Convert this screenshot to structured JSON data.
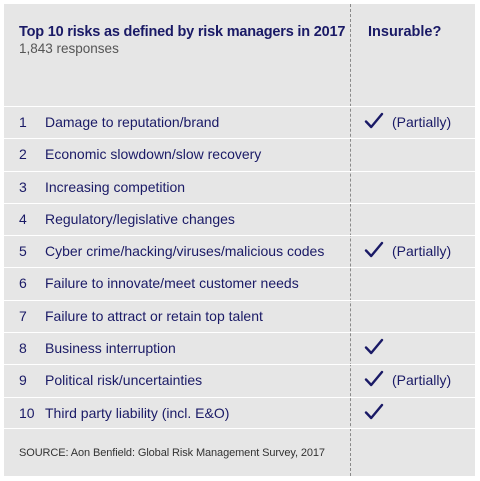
{
  "header": {
    "title": "Top 10 risks as defined by risk managers in 2017",
    "subtitle": "1,843 responses",
    "insurable_heading": "Insurable?"
  },
  "rows": [
    {
      "rank": "1",
      "risk": "Damage to reputation/brand",
      "insurable": true,
      "note": "(Partially)"
    },
    {
      "rank": "2",
      "risk": "Economic slowdown/slow recovery",
      "insurable": false,
      "note": ""
    },
    {
      "rank": "3",
      "risk": "Increasing competition",
      "insurable": false,
      "note": ""
    },
    {
      "rank": "4",
      "risk": "Regulatory/legislative changes",
      "insurable": false,
      "note": ""
    },
    {
      "rank": "5",
      "risk": "Cyber crime/hacking/viruses/malicious codes",
      "insurable": true,
      "note": "(Partially)"
    },
    {
      "rank": "6",
      "risk": "Failure to innovate/meet customer needs",
      "insurable": false,
      "note": ""
    },
    {
      "rank": "7",
      "risk": "Failure to attract or retain top talent",
      "insurable": false,
      "note": ""
    },
    {
      "rank": "8",
      "risk": "Business interruption",
      "insurable": true,
      "note": ""
    },
    {
      "rank": "9",
      "risk": "Political risk/uncertainties",
      "insurable": true,
      "note": "(Partially)"
    },
    {
      "rank": "10",
      "risk": "Third party liability (incl. E&O)",
      "insurable": true,
      "note": ""
    }
  ],
  "footer": {
    "source": "SOURCE: Aon Benfield: Global Risk Management Survey, 2017"
  },
  "colors": {
    "background": "#e6e6e6",
    "text": "#1a1a66",
    "check": "#1a1a66"
  },
  "icons": {
    "insurable_mark": "checkmark-icon"
  }
}
